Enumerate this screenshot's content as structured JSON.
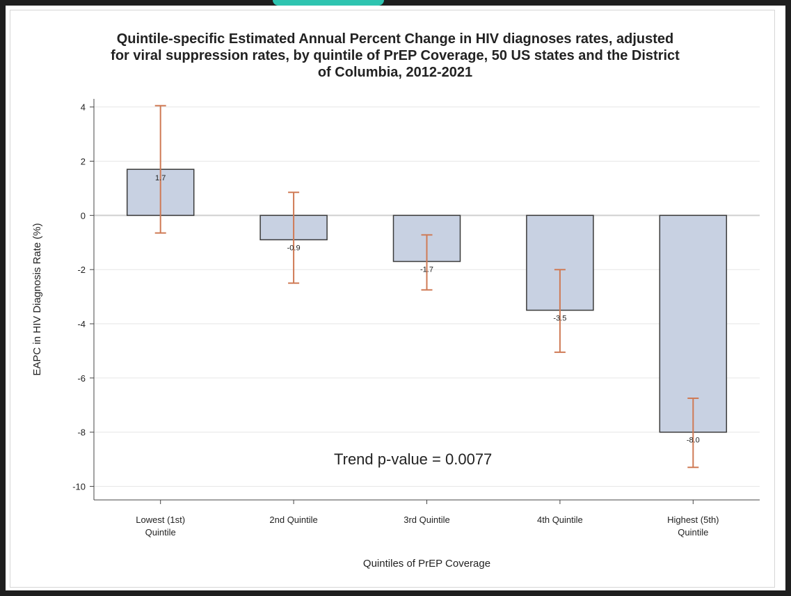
{
  "chart_data": {
    "type": "bar",
    "title_lines": [
      "Quintile-specific Estimated Annual Percent Change in HIV diagnoses rates, adjusted",
      "for viral suppression rates, by quintile of PrEP Coverage, 50 US states and the District",
      "of Columbia, 2012-2021"
    ],
    "xlabel": "Quintiles of PrEP Coverage",
    "ylabel": "EAPC in HIV Diagnosis Rate (%)",
    "ylim": [
      -10.5,
      4.3
    ],
    "yticks": [
      4,
      2,
      0,
      -2,
      -4,
      -6,
      -8,
      -10
    ],
    "categories": [
      [
        "Lowest (1st)",
        "Quintile"
      ],
      [
        "2nd Quintile"
      ],
      [
        "3rd Quintile"
      ],
      [
        "4th Quintile"
      ],
      [
        "Highest (5th)",
        "Quintile"
      ]
    ],
    "values": [
      1.7,
      -0.9,
      -1.7,
      -3.5,
      -8.0
    ],
    "value_labels": [
      "1.7",
      "-0.9",
      "-1.7",
      "-3.5",
      "-8.0"
    ],
    "ci_lower": [
      -0.65,
      -2.5,
      -2.75,
      -5.05,
      -9.3
    ],
    "ci_upper": [
      4.05,
      0.85,
      -0.72,
      -2.0,
      -6.75
    ],
    "annotation": "Trend p-value = 0.0077",
    "grid": true,
    "colors": {
      "bar_fill": "#c8d1e2",
      "bar_stroke": "#3a3a3a",
      "error_bar": "#cf7a55",
      "grid": "#e6e6e6",
      "zero_line": "#cfcfcf"
    }
  }
}
